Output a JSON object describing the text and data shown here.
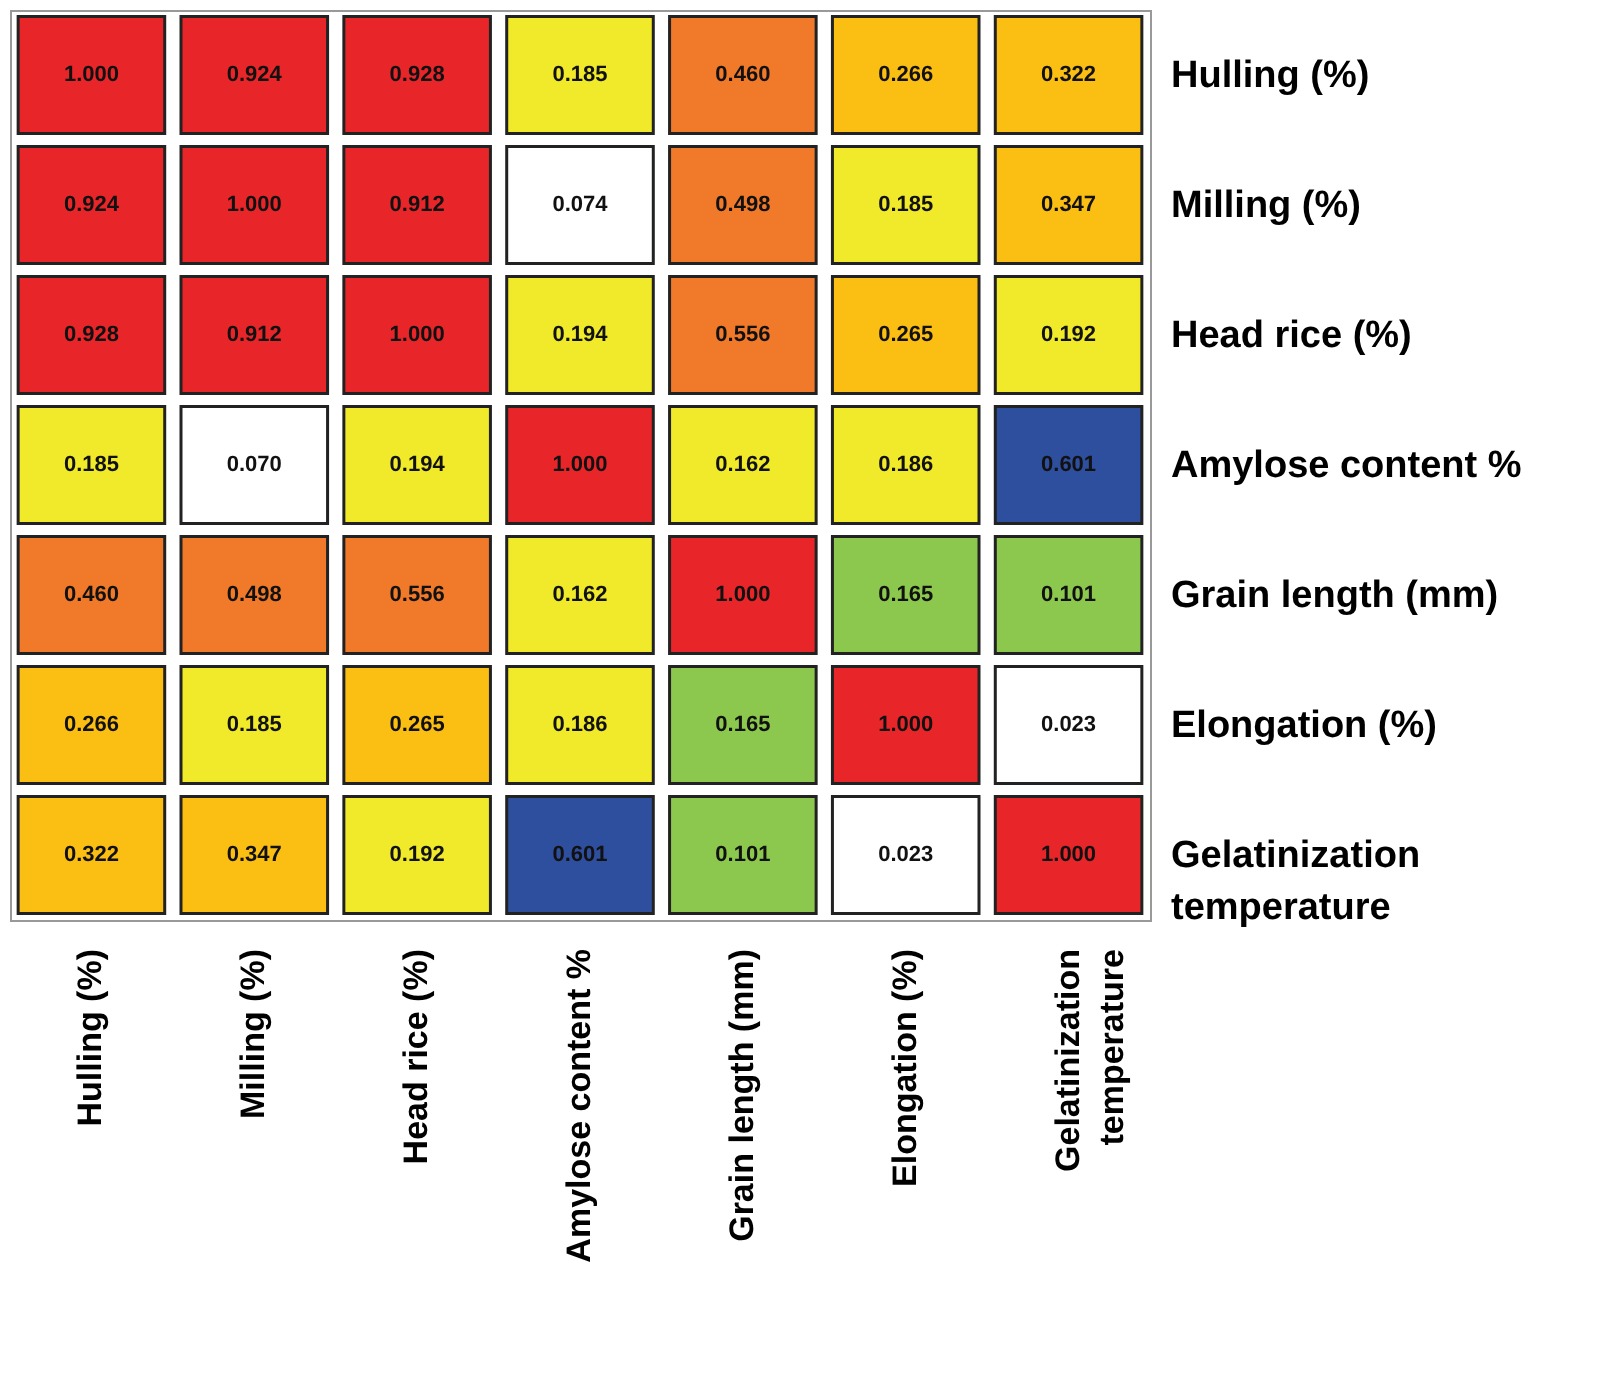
{
  "chart_data": {
    "type": "heatmap",
    "categories": [
      "Hulling (%)",
      "Milling (%)",
      "Head rice (%)",
      "Amylose content  %",
      "Grain  length (mm)",
      "Elongation (%)",
      "Gelatinization temperature"
    ],
    "y_categories": [
      "Hulling (%)",
      "Milling (%)",
      "Head rice (%)",
      "Amylose content  %",
      "Grain  length (mm)",
      "Elongation (%)",
      "Gelatinization temperature"
    ],
    "cells": [
      [
        1.0,
        0.924,
        0.928,
        0.185,
        0.46,
        0.266,
        0.322
      ],
      [
        0.924,
        1.0,
        0.912,
        0.074,
        0.498,
        0.185,
        0.347
      ],
      [
        0.928,
        0.912,
        1.0,
        0.194,
        0.556,
        0.265,
        0.192
      ],
      [
        0.185,
        0.07,
        0.194,
        1.0,
        0.162,
        0.186,
        0.601
      ],
      [
        0.46,
        0.498,
        0.556,
        0.162,
        1.0,
        0.165,
        0.101
      ],
      [
        0.266,
        0.185,
        0.265,
        0.186,
        0.165,
        1.0,
        0.023
      ],
      [
        0.322,
        0.347,
        0.192,
        0.601,
        0.101,
        0.023,
        1.0
      ]
    ],
    "cell_labels": [
      [
        "1.000",
        "0.924",
        "0.928",
        "0.185",
        "0.460",
        "0.266",
        "0.322"
      ],
      [
        "0.924",
        "1.000",
        "0.912",
        "0.074",
        "0.498",
        "0.185",
        "0.347"
      ],
      [
        "0.928",
        "0.912",
        "1.000",
        "0.194",
        "0.556",
        "0.265",
        "0.192"
      ],
      [
        "0.185",
        "0.070",
        "0.194",
        "1.000",
        "0.162",
        "0.186",
        "0.601"
      ],
      [
        "0.460",
        "0.498",
        "0.556",
        "0.162",
        "1.000",
        "0.165",
        "0.101"
      ],
      [
        "0.266",
        "0.185",
        "0.265",
        "0.186",
        "0.165",
        "1.000",
        "0.023"
      ],
      [
        "0.322",
        "0.347",
        "0.192",
        "0.601",
        "0.101",
        "0.023",
        "1.000"
      ]
    ],
    "colors": [
      [
        "#e8262a",
        "#e8262a",
        "#e8262a",
        "#f0ea2a",
        "#f07a2a",
        "#fbbf14",
        "#fbbf14"
      ],
      [
        "#e8262a",
        "#e8262a",
        "#e8262a",
        "#ffffff",
        "#f07a2a",
        "#f0ea2a",
        "#fbbf14"
      ],
      [
        "#e8262a",
        "#e8262a",
        "#e8262a",
        "#f0ea2a",
        "#f07a2a",
        "#fbbf14",
        "#f0ea2a"
      ],
      [
        "#f0ea2a",
        "#ffffff",
        "#f0ea2a",
        "#e8262a",
        "#f0ea2a",
        "#f0ea2a",
        "#2e4e9e"
      ],
      [
        "#f07a2a",
        "#f07a2a",
        "#f07a2a",
        "#f0ea2a",
        "#e8262a",
        "#8cc84e",
        "#8cc84e"
      ],
      [
        "#fbbf14",
        "#f0ea2a",
        "#fbbf14",
        "#f0ea2a",
        "#8cc84e",
        "#e8262a",
        "#ffffff"
      ],
      [
        "#fbbf14",
        "#fbbf14",
        "#f0ea2a",
        "#2e4e9e",
        "#8cc84e",
        "#ffffff",
        "#e8262a"
      ]
    ]
  }
}
